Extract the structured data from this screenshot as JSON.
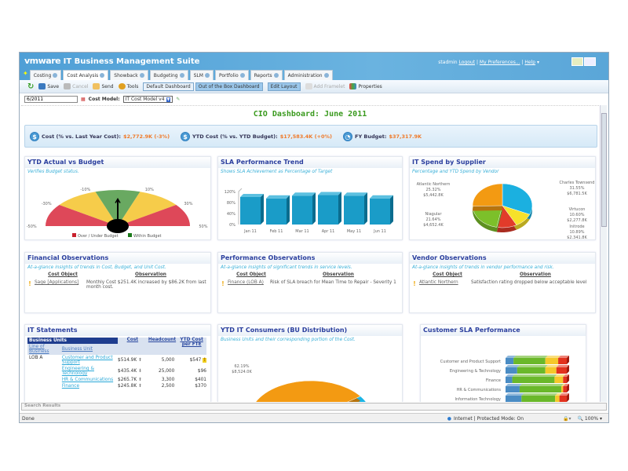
{
  "app": {
    "brand": "vmware",
    "title": "IT Business Management Suite"
  },
  "user": {
    "name": "stadmin",
    "logout": "Logout",
    "prefs": "My Preferences...",
    "help": "Help"
  },
  "tabs": [
    "Costing",
    "Cost Analysis",
    "Showback",
    "Budgeting",
    "SLM",
    "Portfolio",
    "Reports",
    "Administration"
  ],
  "toolbar": {
    "save": "Save",
    "cancel": "Cancel",
    "send": "Send",
    "tools": "Tools",
    "default_dashboard": "Default Dashboard",
    "ootb_dashboard": "Out of the Box Dashboard",
    "edit_layout": "Edit Layout",
    "add_framelet": "Add Framelet",
    "properties": "Properties"
  },
  "filter": {
    "date": "6/2011",
    "cost_model_label": "Cost Model:",
    "cost_model": "IT Cost Model v4"
  },
  "dashboard": {
    "title": "CIO Dashboard: June 2011"
  },
  "kpi": [
    {
      "label": "Cost (% vs. Last Year Cost):",
      "value": "$2,772.9K (-3%)"
    },
    {
      "label": "YTD Cost (% vs. YTD Budget):",
      "value": "$17,583.4K (+0%)"
    },
    {
      "label": "FY Budget:",
      "value": "$37,317.9K"
    }
  ],
  "panels": {
    "ytd": {
      "title": "YTD Actual vs Budget",
      "subtitle": "Verifies Budget status."
    },
    "sla": {
      "title": "SLA Performance Trend",
      "subtitle": "Shows SLA Achievement as Percentage of Target"
    },
    "supplier": {
      "title": "IT Spend by Supplier",
      "subtitle": "Percentage and YTD Spend by Vendor"
    },
    "fin_obs": {
      "title": "Financial Observations",
      "subtitle": "At-a-glance insights of trends in Cost, Budget, and Unit Cost.",
      "col1": "Cost Object",
      "col2": "Observation",
      "object": "Sage [Applications]",
      "observation": "Monthly Cost $251.4K increased by $86.2K from last month cost."
    },
    "perf_obs": {
      "title": "Performance Observations",
      "subtitle": "At-a-glance insights of significant trends in service levels.",
      "col1": "Cost Object",
      "col2": "Observation",
      "object": "Finance (LOB A)",
      "observation": "Risk of SLA breach for Mean Time to Repair - Severity 1"
    },
    "vend_obs": {
      "title": "Vendor Observations",
      "subtitle": "At-a-glance insights of trends in vendor performance and risk.",
      "col1": "Cost Object",
      "col2": "Observation",
      "object": "Atlantic Northern",
      "observation": "Satisfaction rating dropped below acceptable level"
    },
    "statements": {
      "title": "IT Statements",
      "group": "Business Units",
      "headers": [
        "Line of Business",
        "Business Unit",
        "Cost",
        "Headcount",
        "YTD Cost per FTE"
      ],
      "rows": [
        {
          "lob": "LOB A",
          "bu": "Customer and Product Support",
          "cost": "$514.9K",
          "trend": "up",
          "headcount": "5,000",
          "per_fte": "$547",
          "flag": true
        },
        {
          "lob": "",
          "bu": "Engineering & Technology",
          "cost": "$435.4K",
          "trend": "down",
          "headcount": "25,000",
          "per_fte": "$96",
          "flag": false
        },
        {
          "lob": "",
          "bu": "HR & Communications",
          "cost": "$265.7K",
          "trend": "up",
          "headcount": "3,300",
          "per_fte": "$401",
          "flag": false
        },
        {
          "lob": "",
          "bu": "Finance",
          "cost": "$245.8K",
          "trend": "up",
          "headcount": "2,500",
          "per_fte": "$370",
          "flag": false
        }
      ]
    },
    "consumers": {
      "title": "YTD IT Consumers (BU Distribution)",
      "subtitle": "Business Units and their corresponding portion of the Cost."
    },
    "cust_sla": {
      "title": "Customer SLA Performance"
    }
  },
  "chart_data": [
    {
      "type": "gauge",
      "name": "YTD Actual vs Budget",
      "tick_labels": [
        "-50%",
        "-30%",
        "-10%",
        "10%",
        "30%",
        "50%"
      ],
      "range": [
        -50,
        50
      ],
      "bands": [
        {
          "from": -50,
          "to": -30,
          "color": "#d8283c"
        },
        {
          "from": -30,
          "to": -10,
          "color": "#f5c32a"
        },
        {
          "from": -10,
          "to": 10,
          "color": "#4f9a45"
        },
        {
          "from": 10,
          "to": 30,
          "color": "#f5c32a"
        },
        {
          "from": 30,
          "to": 50,
          "color": "#d8283c"
        }
      ],
      "value": 0,
      "legend": [
        {
          "label": "Over / Under Budget",
          "color": "#c8202c"
        },
        {
          "label": "Within Budget",
          "color": "#1a7a1a"
        }
      ]
    },
    {
      "type": "bar",
      "name": "SLA Performance Trend",
      "categories": [
        "Jan 11",
        "Feb 11",
        "Mar 11",
        "Apr 11",
        "May 11",
        "Jun 11"
      ],
      "values": [
        100,
        95,
        105,
        107,
        105,
        95
      ],
      "yticks": [
        "0%",
        "40%",
        "80%",
        "120%"
      ],
      "ylim": [
        0,
        120
      ],
      "color": "#1a9cc8"
    },
    {
      "type": "pie",
      "name": "IT Spend by Supplier",
      "slices": [
        {
          "label": "Charles Townsend",
          "pct": 31.55,
          "value": "$6,781.5K",
          "color": "#1bb0e0"
        },
        {
          "label": "Virtucon",
          "pct": 10.6,
          "value": "$2,277.8K",
          "color": "#f6e12a"
        },
        {
          "label": "Initrode",
          "pct": 10.89,
          "value": "$2,341.8K",
          "color": "#e23b2a"
        },
        {
          "label": "Niagular",
          "pct": 21.64,
          "value": "$4,652.4K",
          "color": "#7cc02a"
        },
        {
          "label": "Atlantic Northern",
          "pct": 25.32,
          "value": "$5,442.8K",
          "color": "#f39a12"
        }
      ]
    },
    {
      "type": "pie",
      "name": "YTD IT Consumers",
      "slices": [
        {
          "label": "",
          "pct": 62.19,
          "value": "$8,524.0K",
          "color": "#1bb5e5"
        },
        {
          "label": "",
          "pct": 37.81,
          "value": "",
          "color": "#f39a12"
        }
      ]
    },
    {
      "type": "bar",
      "stacked": true,
      "orientation": "horizontal",
      "name": "Customer SLA Performance",
      "categories": [
        "Customer and Product Support",
        "Engineering & Technology",
        "Finance",
        "HR & Communications",
        "Information Technology"
      ],
      "series": [
        {
          "name": "blue",
          "color": "#4a8cc4",
          "values": [
            13,
            19,
            11,
            23,
            26
          ]
        },
        {
          "name": "green",
          "color": "#6ab82a",
          "values": [
            52,
            46,
            69,
            68,
            55
          ]
        },
        {
          "name": "yellow",
          "color": "#f5c82a",
          "values": [
            21,
            18,
            14,
            3,
            7
          ]
        },
        {
          "name": "red",
          "color": "#e2321e",
          "values": [
            14,
            17,
            6,
            6,
            12
          ]
        }
      ]
    }
  ],
  "search": {
    "label": "Search Results"
  },
  "status": {
    "left": "Done",
    "zone": "Internet | Protected Mode: On",
    "zoom": "100%"
  }
}
